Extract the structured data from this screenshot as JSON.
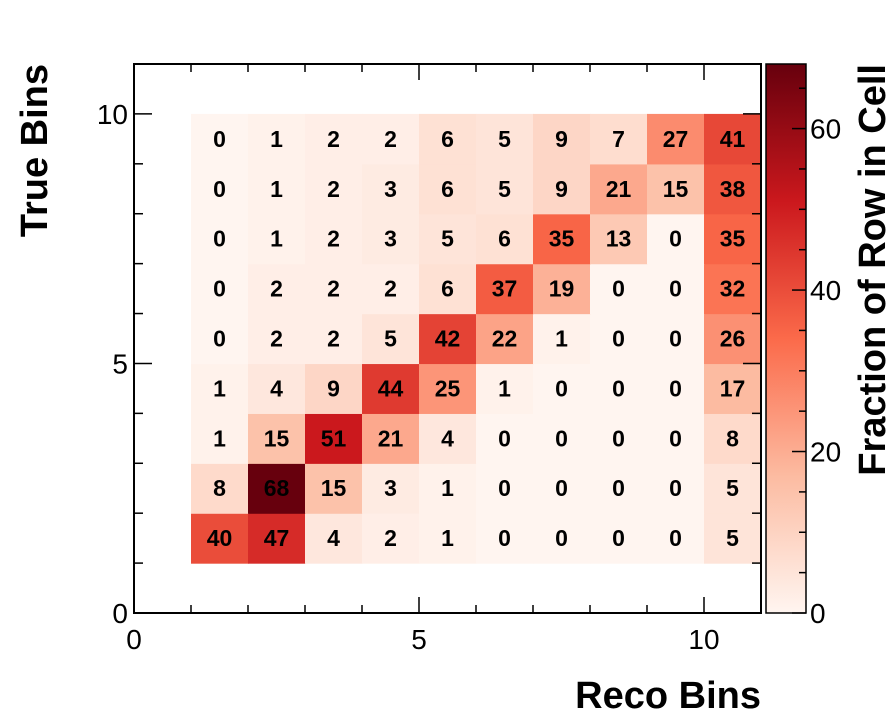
{
  "chart_data": {
    "type": "heatmap",
    "xlabel": "Reco Bins",
    "ylabel": "True Bins",
    "zlabel": "Fraction of Row in Cell",
    "xlim": [
      0,
      11
    ],
    "ylim": [
      0,
      11
    ],
    "zlim": [
      0,
      68
    ],
    "x_ticks": [
      "0",
      "5",
      "10"
    ],
    "y_ticks": [
      "0",
      "5",
      "10"
    ],
    "z_ticks": [
      "0",
      "20",
      "40",
      "60"
    ],
    "colormap": [
      "#fff5f0",
      "#fcbba1",
      "#fb6a4a",
      "#cb181d",
      "#67000d"
    ],
    "cell_width": 1,
    "rows": [
      {
        "y": 1,
        "values": [
          40,
          47,
          4,
          2,
          1,
          0,
          0,
          0,
          0,
          5
        ]
      },
      {
        "y": 2,
        "values": [
          8,
          68,
          15,
          3,
          1,
          0,
          0,
          0,
          0,
          5
        ]
      },
      {
        "y": 3,
        "values": [
          1,
          15,
          51,
          21,
          4,
          0,
          0,
          0,
          0,
          8
        ]
      },
      {
        "y": 4,
        "values": [
          1,
          4,
          9,
          44,
          25,
          1,
          0,
          0,
          0,
          17
        ]
      },
      {
        "y": 5,
        "values": [
          0,
          2,
          2,
          5,
          42,
          22,
          1,
          0,
          0,
          26
        ]
      },
      {
        "y": 6,
        "values": [
          0,
          2,
          2,
          2,
          6,
          37,
          19,
          0,
          0,
          32
        ]
      },
      {
        "y": 7,
        "values": [
          0,
          1,
          2,
          3,
          5,
          6,
          35,
          13,
          0,
          35
        ]
      },
      {
        "y": 8,
        "values": [
          0,
          1,
          2,
          3,
          6,
          5,
          9,
          21,
          15,
          38
        ]
      },
      {
        "y": 9,
        "values": [
          0,
          1,
          2,
          2,
          6,
          5,
          9,
          7,
          27,
          41
        ]
      }
    ]
  }
}
